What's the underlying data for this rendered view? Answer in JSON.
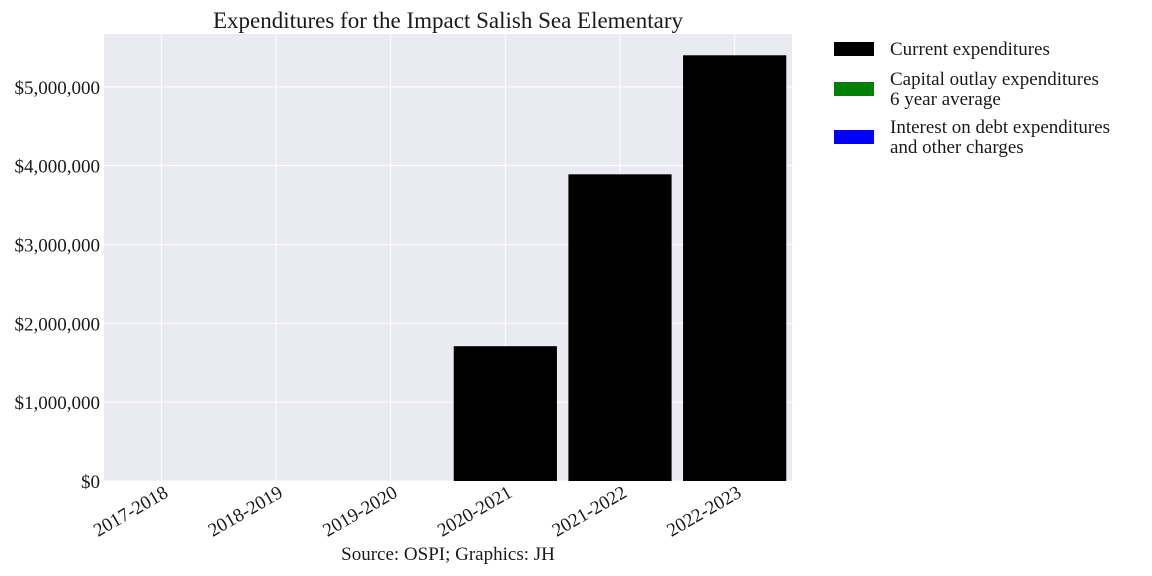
{
  "chart_data": {
    "type": "bar",
    "title": "Expenditures for the Impact Salish Sea Elementary",
    "categories": [
      "2017-2018",
      "2018-2019",
      "2019-2020",
      "2020-2021",
      "2021-2022",
      "2022-2023"
    ],
    "series": [
      {
        "name": "Current expenditures",
        "color": "#000000",
        "values": [
          0,
          0,
          0,
          1710000,
          3890000,
          5400000
        ]
      }
    ],
    "legend": [
      {
        "lines": [
          "Current expenditures"
        ],
        "color": "#000000"
      },
      {
        "lines": [
          "Capital outlay expenditures",
          "6 year average"
        ],
        "color": "#008000"
      },
      {
        "lines": [
          "Interest on debt expenditures",
          "and other charges"
        ],
        "color": "#0000ff"
      }
    ],
    "yticks": [
      0,
      1000000,
      2000000,
      3000000,
      4000000,
      5000000
    ],
    "ytick_labels": [
      "$0",
      "$1,000,000",
      "$2,000,000",
      "$3,000,000",
      "$4,000,000",
      "$5,000,000"
    ],
    "ylim": [
      0,
      5670000
    ],
    "grid": true,
    "legend_position": "outside-right-top",
    "xlabel": "",
    "ylabel": "",
    "source": "Source: OSPI; Graphics: JH"
  }
}
